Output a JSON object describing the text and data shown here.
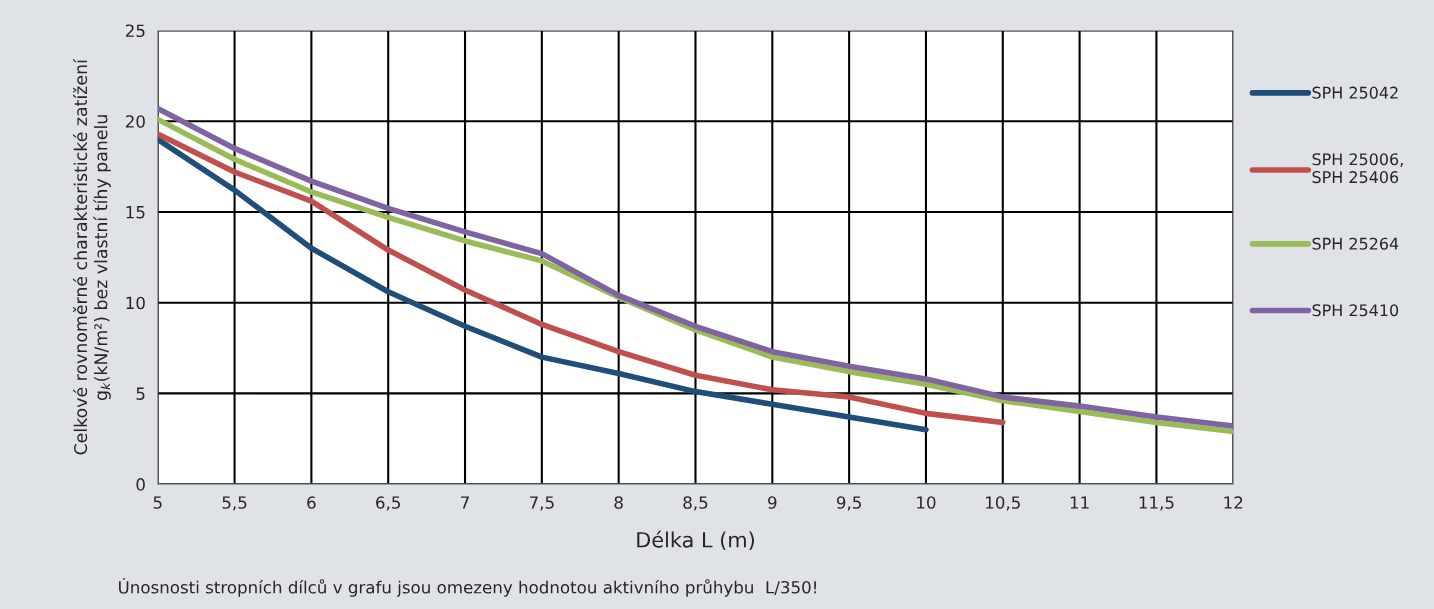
{
  "chart_data": {
    "type": "line",
    "xlabel": "Délka L (m)",
    "ylabel": "Celkové rovnoměrné charakteristické zatížení\ng$_{k}$(kN/m²) bez vlastní tíhy panelu",
    "x": [
      5,
      5.5,
      6,
      6.5,
      7,
      7.5,
      8,
      8.5,
      9,
      9.5,
      10,
      10.5,
      11,
      11.5,
      12
    ],
    "series": [
      {
        "name": "SPH 25042",
        "color": "#1f4e79",
        "values": [
          19.0,
          16.2,
          13.0,
          10.6,
          8.7,
          7.0,
          6.1,
          5.1,
          4.4,
          3.7,
          3.0,
          null,
          null,
          null,
          null
        ]
      },
      {
        "name": "SPH 25006,\nSPH 25406",
        "color": "#c0504d",
        "values": [
          19.3,
          17.2,
          15.6,
          12.9,
          10.7,
          8.8,
          7.3,
          6.0,
          5.2,
          4.8,
          3.9,
          3.4,
          null,
          null,
          null
        ]
      },
      {
        "name": "SPH 25264",
        "color": "#9bbb59",
        "values": [
          20.1,
          17.9,
          16.1,
          14.7,
          13.4,
          12.3,
          10.3,
          8.5,
          7.0,
          6.2,
          5.5,
          4.6,
          4.0,
          3.4,
          2.9
        ]
      },
      {
        "name": "SPH 25410",
        "color": "#8064a2",
        "values": [
          20.7,
          18.5,
          16.7,
          15.2,
          13.9,
          12.7,
          10.4,
          8.7,
          7.3,
          6.5,
          5.8,
          4.8,
          4.3,
          3.7,
          3.2
        ]
      }
    ],
    "xlim": [
      5,
      12
    ],
    "xticks": [
      5,
      {
        "value": 5.5,
        "label": "5,5"
      },
      6,
      {
        "value": 6.5,
        "label": "6,5"
      },
      7,
      {
        "value": 7.5,
        "label": "7,5"
      },
      8,
      {
        "value": 8.5,
        "label": "8,5"
      },
      9,
      {
        "value": 9.5,
        "label": "9,5"
      },
      10,
      {
        "value": 10.5,
        "label": "10,5"
      },
      11,
      {
        "value": 11.5,
        "label": "11,5"
      },
      12
    ],
    "ylim": [
      0,
      25
    ],
    "yticks": [
      0,
      5,
      10,
      15,
      20,
      25
    ],
    "grid": true,
    "legend": "right",
    "line_style": "solid",
    "annotations": [
      "Únosnosti stropních dílců v grafu jsou omezeny hodnotou aktivního průhybu  L/350!"
    ]
  }
}
